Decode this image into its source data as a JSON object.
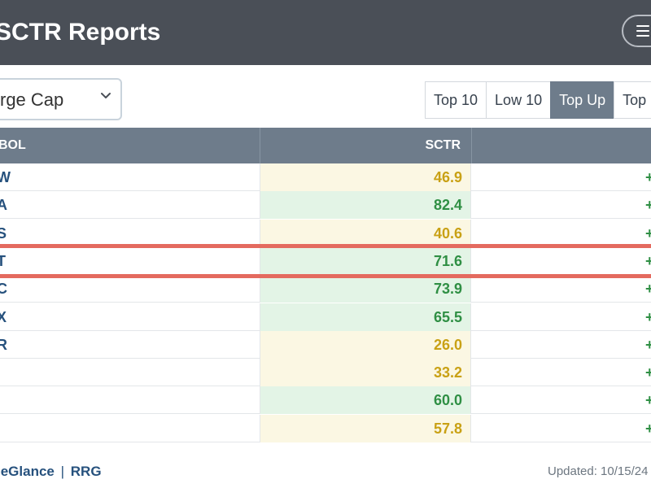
{
  "header": {
    "title": "SCTR Reports",
    "menu_icon": "hamburger-menu-icon"
  },
  "filter": {
    "selected": "rge Cap",
    "chevron_icon": "chevron-down-icon"
  },
  "range_tabs": [
    {
      "label": "Top 10",
      "active": false
    },
    {
      "label": "Low 10",
      "active": false
    },
    {
      "label": "Top Up",
      "active": true
    },
    {
      "label": "Top D",
      "active": false
    }
  ],
  "table": {
    "headers": {
      "symbol": "BOL",
      "sctr": "SCTR"
    },
    "rows": [
      {
        "symbol": "W",
        "sctr": "46.9",
        "change": "+",
        "level": "mid"
      },
      {
        "symbol": "A",
        "sctr": "82.4",
        "change": "+",
        "level": "high"
      },
      {
        "symbol": "S",
        "sctr": "40.6",
        "change": "+",
        "level": "mid"
      },
      {
        "symbol": "T",
        "sctr": "71.6",
        "change": "+",
        "level": "high",
        "highlighted": true
      },
      {
        "symbol": "C",
        "sctr": "73.9",
        "change": "+",
        "level": "high"
      },
      {
        "symbol": "X",
        "sctr": "65.5",
        "change": "+",
        "level": "high"
      },
      {
        "symbol": "R",
        "sctr": "26.0",
        "change": "+",
        "level": "mid"
      },
      {
        "symbol": "",
        "sctr": "33.2",
        "change": "+",
        "level": "mid"
      },
      {
        "symbol": "",
        "sctr": "60.0",
        "change": "+",
        "level": "high"
      },
      {
        "symbol": "",
        "sctr": "57.8",
        "change": "+",
        "level": "mid"
      }
    ]
  },
  "footer": {
    "link1": "leGlance",
    "separator": "|",
    "link2": "RRG",
    "updated": "Updated: 10/15/24"
  },
  "colors": {
    "header_bg": "#4a4f57",
    "table_header_bg": "#6e7c8b",
    "mid_value": "#c9a115",
    "high_value": "#2f8f44",
    "highlight": "#e46a5f",
    "link": "#26517d"
  }
}
